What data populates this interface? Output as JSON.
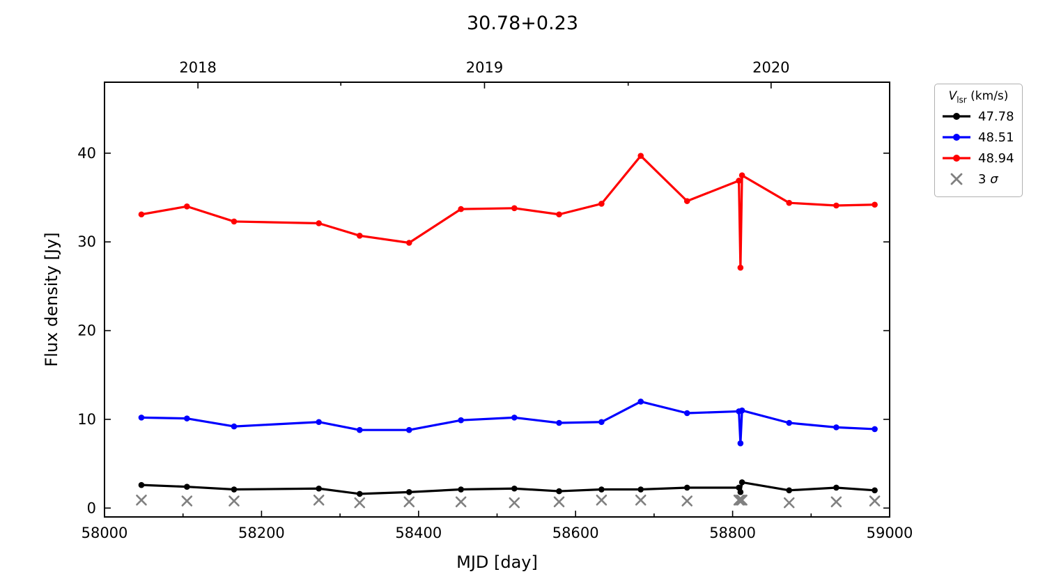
{
  "chart_data": {
    "type": "line",
    "title": "30.78+0.23",
    "xlabel": "MJD [day]",
    "ylabel": "Flux density [Jy]",
    "xlim": [
      58000,
      59000
    ],
    "ylim": [
      -1,
      48
    ],
    "grid": false,
    "x_ticks_major": [
      58000,
      58200,
      58400,
      58600,
      58800,
      59000
    ],
    "x_ticks_minor": [
      58100,
      58300,
      58500,
      58700,
      58900
    ],
    "y_ticks": [
      0,
      10,
      20,
      30,
      40
    ],
    "top_axis_year_ticks": [
      {
        "mjd": 58119,
        "label": "2018"
      },
      {
        "mjd": 58484,
        "label": "2019"
      },
      {
        "mjd": 58849,
        "label": "2020"
      }
    ],
    "top_axis_minor_ticks": [
      58301,
      58667
    ],
    "x": [
      58047,
      58105,
      58165,
      58273,
      58325,
      58388,
      58454,
      58522,
      58579,
      58633,
      58683,
      58742,
      58808,
      58810,
      58812,
      58872,
      58932,
      58981
    ],
    "series": [
      {
        "name": "47.78",
        "color": "#000000",
        "values": [
          2.6,
          2.4,
          2.1,
          2.2,
          1.6,
          1.8,
          2.1,
          2.2,
          1.9,
          2.1,
          2.1,
          2.3,
          2.3,
          1.8,
          2.9,
          2.0,
          2.3,
          2.0
        ]
      },
      {
        "name": "48.51",
        "color": "#0000ff",
        "values": [
          10.2,
          10.1,
          9.2,
          9.7,
          8.8,
          8.8,
          9.9,
          10.2,
          9.6,
          9.7,
          12.0,
          10.7,
          10.9,
          7.3,
          11.0,
          9.6,
          9.1,
          8.9
        ]
      },
      {
        "name": "48.94",
        "color": "#ff0000",
        "values": [
          33.1,
          34.0,
          32.3,
          32.1,
          30.7,
          29.9,
          33.7,
          33.8,
          33.1,
          34.3,
          39.7,
          34.6,
          36.9,
          27.1,
          37.5,
          34.4,
          34.1,
          34.2
        ]
      }
    ],
    "sigma_markers": {
      "name": "3 σ",
      "color": "#808080",
      "values": [
        0.9,
        0.8,
        0.8,
        0.9,
        0.6,
        0.7,
        0.7,
        0.6,
        0.7,
        0.9,
        0.9,
        0.8,
        0.9,
        0.9,
        0.9,
        0.6,
        0.7,
        0.8
      ]
    },
    "legend": {
      "position": "outside-right-top",
      "title_var": "V",
      "title_sub": "lsr",
      "title_unit": " (km/s)"
    }
  }
}
